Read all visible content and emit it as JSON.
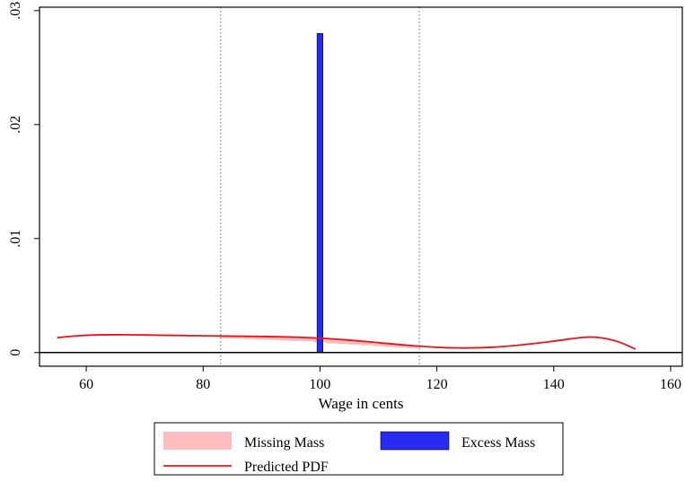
{
  "chart_data": {
    "type": "bar",
    "title": "",
    "xlabel": "Wage in cents",
    "ylabel": "",
    "xlim": [
      52,
      162
    ],
    "ylim": [
      -0.0012,
      0.0303
    ],
    "x_ticks": [
      60,
      80,
      100,
      120,
      140,
      160
    ],
    "y_ticks": [
      0,
      0.01,
      0.02,
      0.03
    ],
    "x_tick_labels": [
      "60",
      "80",
      "100",
      "120",
      "140",
      "160"
    ],
    "y_tick_labels": [
      "0",
      ".01",
      ".02",
      ".03"
    ],
    "grid": false,
    "legend_position": "bottom",
    "vertical_lines": [
      83,
      117
    ],
    "excess_mass": {
      "name": "Excess Mass",
      "color": "#2a2af5",
      "x_start": 99.5,
      "x_end": 100.5,
      "value": 0.028
    },
    "missing_mass": {
      "name": "Missing Mass",
      "color": "#ffbcbc",
      "x_start": 83,
      "x_end": 117,
      "bins": [
        {
          "x": 83,
          "actual": 0.00125
        },
        {
          "x": 85,
          "actual": 0.00122
        },
        {
          "x": 87,
          "actual": 0.00118
        },
        {
          "x": 89,
          "actual": 0.00114
        },
        {
          "x": 91,
          "actual": 0.0011
        },
        {
          "x": 93,
          "actual": 0.00106
        },
        {
          "x": 95,
          "actual": 0.00102
        },
        {
          "x": 97,
          "actual": 0.00098
        },
        {
          "x": 99,
          "actual": 0.0009
        },
        {
          "x": 101,
          "actual": 0.0008
        },
        {
          "x": 103,
          "actual": 0.00075
        },
        {
          "x": 105,
          "actual": 0.0007
        },
        {
          "x": 107,
          "actual": 0.00063
        },
        {
          "x": 109,
          "actual": 0.00057
        },
        {
          "x": 111,
          "actual": 0.0005
        },
        {
          "x": 113,
          "actual": 0.00044
        },
        {
          "x": 115,
          "actual": 0.00038
        },
        {
          "x": 117,
          "actual": 0.00036
        }
      ]
    },
    "predicted_pdf": {
      "name": "Predicted PDF",
      "color": "#e8141a",
      "x": [
        55,
        58,
        62,
        66,
        70,
        75,
        80,
        85,
        90,
        95,
        100,
        105,
        110,
        115,
        120,
        125,
        130,
        135,
        140,
        145,
        148,
        151,
        154
      ],
      "y": [
        0.0013,
        0.00145,
        0.00155,
        0.00156,
        0.00154,
        0.0015,
        0.00147,
        0.00144,
        0.00141,
        0.00136,
        0.00126,
        0.00109,
        0.00087,
        0.00064,
        0.00046,
        0.0004,
        0.00048,
        0.0007,
        0.001,
        0.00133,
        0.0013,
        0.00095,
        0.0003
      ]
    },
    "legend": [
      "Missing Mass",
      "Excess Mass",
      "Predicted PDF"
    ]
  }
}
